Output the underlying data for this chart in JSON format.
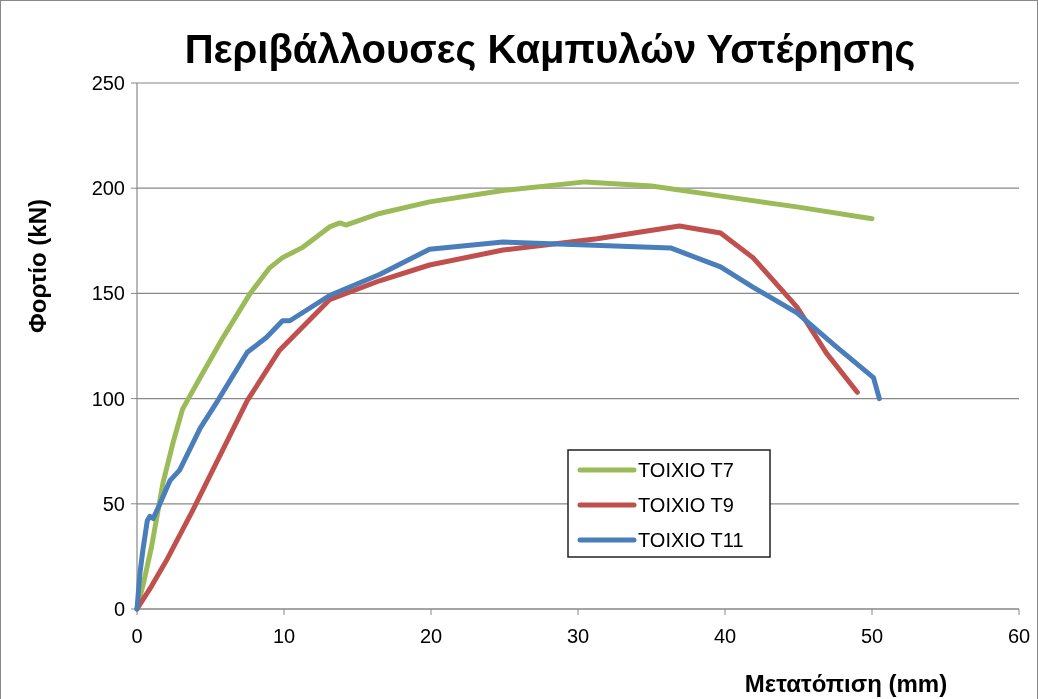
{
  "chart_data": {
    "type": "line",
    "title": "Περιβάλλουσες Καμπυλών Υστέρησης",
    "xlabel": "Μετατόπιση (mm)",
    "ylabel": "Φορτίο (kN)",
    "xlim": [
      0,
      60
    ],
    "xticks": [
      0,
      10,
      20,
      30,
      40,
      50,
      60
    ],
    "ylim": [
      0,
      250
    ],
    "yticks": [
      0,
      50,
      100,
      150,
      200,
      250
    ],
    "grid": "y",
    "legend": "bottom right",
    "line_style": "solid",
    "marker": "none",
    "series": [
      {
        "name": "ΤΟΙΧΙΟ Τ7",
        "color": "#9bbb59",
        "x": [
          0,
          0.5,
          1,
          1.77,
          2.45,
          3.1,
          4.3,
          5.85,
          7.7,
          9,
          9.9,
          11.3,
          13.1,
          13.8,
          14.2,
          16.5,
          19.9,
          25,
          30.5,
          35,
          40,
          45,
          50
        ],
        "values": [
          0,
          14,
          30,
          60,
          79,
          95,
          110,
          129,
          150,
          162,
          167,
          172,
          181.6,
          183.5,
          182.5,
          188,
          193.5,
          199,
          203,
          201,
          196,
          191,
          185.5
        ]
      },
      {
        "name": "ΤΟΙΧΙΟ Τ9",
        "color": "#c0504d",
        "x": [
          0,
          1,
          2,
          3.8,
          7.5,
          9.7,
          13.1,
          16.5,
          19.9,
          24.9,
          31.3,
          36.9,
          39.7,
          41.9,
          44.9,
          46.9,
          49
        ],
        "values": [
          0,
          11,
          23,
          47,
          99,
          123,
          147,
          156,
          163.5,
          170.6,
          176,
          182,
          178.7,
          167,
          143.5,
          121.6,
          103
        ]
      },
      {
        "name": "ΤΟΙΧΙΟ Τ11",
        "color": "#4a7ebb",
        "x": [
          0,
          0.2,
          0.4,
          0.7,
          0.88,
          1.1,
          1.56,
          2.24,
          2.9,
          4.3,
          5.4,
          7.5,
          8.8,
          9.9,
          10.4,
          13.1,
          16.5,
          19.9,
          24.9,
          30.6,
          36.3,
          39.7,
          41.9,
          44.9,
          47.6,
          50.1,
          50.5
        ],
        "values": [
          0,
          17,
          28,
          42,
          44,
          43,
          50,
          61,
          66,
          86,
          98,
          122,
          129,
          137,
          137,
          149,
          159,
          171,
          174.4,
          173,
          171.6,
          162.6,
          153,
          140.7,
          124.5,
          110,
          100
        ]
      }
    ]
  }
}
